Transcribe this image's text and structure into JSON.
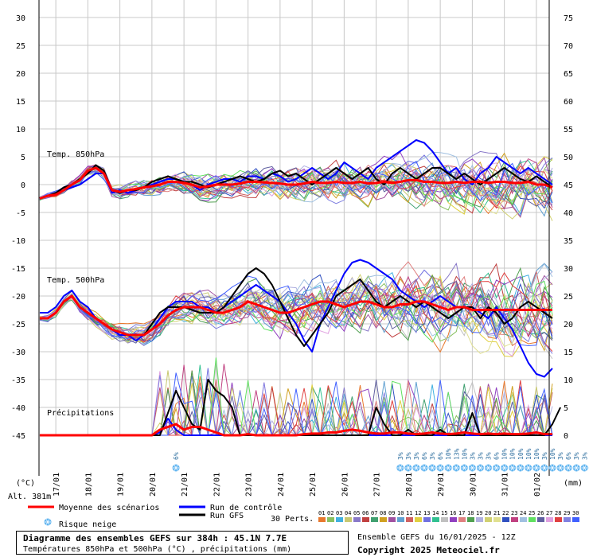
{
  "chart_data": {
    "type": "line",
    "title": "Diagramme des ensembles GEFS sur 384h : 45.1N 7.7E",
    "subtitle": "Températures 850hPa et 500hPa (°C) , précipitations (mm)",
    "run_info": "Ensemble GEFS du 16/01/2025 - 12Z",
    "copyright": "Copyright 2025 Meteociel.fr",
    "altitude": "Alt. 381m",
    "y_left_unit": "(°C)",
    "y_right_unit": "(mm)",
    "y_left_ticks": [
      "30",
      "25",
      "20",
      "15",
      "10",
      "5",
      "0",
      "-5",
      "-10",
      "-15",
      "-20",
      "-25",
      "-30",
      "-35",
      "-40",
      "-45"
    ],
    "y_right_ticks": [
      "75",
      "70",
      "65",
      "60",
      "55",
      "50",
      "45",
      "40",
      "35",
      "30",
      "25",
      "20",
      "15",
      "10",
      "5",
      "0"
    ],
    "ylim_left": [
      -45,
      30
    ],
    "ylim_right": [
      0,
      75
    ],
    "x_ticks": [
      "17/01",
      "18/01",
      "19/01",
      "20/01",
      "21/01",
      "22/01",
      "23/01",
      "24/01",
      "25/01",
      "26/01",
      "27/01",
      "28/01",
      "29/01",
      "30/01",
      "31/01",
      "01/02"
    ],
    "x_start": "16/01 12Z",
    "x_step_hours": 6,
    "grid": true,
    "section_labels": [
      "Temp. 850hPa",
      "Temp. 500hPa",
      "Précipitations"
    ],
    "snow_risk": {
      "icon": "snowflake-icon",
      "color": "#5fb4f0",
      "entries": [
        {
          "t": 17,
          "pct": "6%"
        },
        {
          "t": 45,
          "pct": "3%"
        },
        {
          "t": 46,
          "pct": "3%"
        },
        {
          "t": 47,
          "pct": "3%"
        },
        {
          "t": 48,
          "pct": "6%"
        },
        {
          "t": 49,
          "pct": "3%"
        },
        {
          "t": 50,
          "pct": "6%"
        },
        {
          "t": 51,
          "pct": "10%"
        },
        {
          "t": 52,
          "pct": "13%"
        },
        {
          "t": 53,
          "pct": "10%"
        },
        {
          "t": 54,
          "pct": "3%"
        },
        {
          "t": 55,
          "pct": "3%"
        },
        {
          "t": 56,
          "pct": "3%"
        },
        {
          "t": 57,
          "pct": "6%"
        },
        {
          "t": 58,
          "pct": "10%"
        },
        {
          "t": 59,
          "pct": "10%"
        },
        {
          "t": 60,
          "pct": "10%"
        },
        {
          "t": 61,
          "pct": "10%"
        },
        {
          "t": 62,
          "pct": "10%"
        },
        {
          "t": 63,
          "pct": "3%"
        },
        {
          "t": 64,
          "pct": "10%"
        },
        {
          "t": 65,
          "pct": "3%"
        },
        {
          "t": 66,
          "pct": "6%"
        },
        {
          "t": 67,
          "pct": "3%"
        },
        {
          "t": 68,
          "pct": "3%"
        },
        {
          "t": 69,
          "pct": "6%"
        },
        {
          "t": 70,
          "pct": "3%"
        },
        {
          "t": 71,
          "pct": "6%"
        },
        {
          "t": 74,
          "pct": "6%"
        },
        {
          "t": 78,
          "pct": "6%"
        },
        {
          "t": 79,
          "pct": "3%"
        },
        {
          "t": 80,
          "pct": "10%"
        }
      ]
    },
    "legend": {
      "mean": {
        "label": "Moyenne des scénarios",
        "color": "#ff0000"
      },
      "control": {
        "label": "Run de contrôle",
        "color": "#0000ff"
      },
      "gfs": {
        "label": "Run GFS",
        "color": "#000000"
      },
      "snow": {
        "label": "Risque neige"
      },
      "perts": {
        "label": "30 Perts.",
        "numbers": [
          "01",
          "02",
          "03",
          "04",
          "05",
          "06",
          "07",
          "08",
          "09",
          "10",
          "11",
          "12",
          "13",
          "14",
          "15",
          "16",
          "17",
          "18",
          "19",
          "20",
          "21",
          "22",
          "23",
          "24",
          "25",
          "26",
          "27",
          "28",
          "29",
          "30"
        ],
        "colors": [
          "#e8782d",
          "#88c060",
          "#40b0e0",
          "#c8c870",
          "#8878c8",
          "#c04040",
          "#40a070",
          "#d0a020",
          "#a050a0",
          "#60a0d0",
          "#d06060",
          "#e0d040",
          "#7070e0",
          "#30c090",
          "#c0c0c0",
          "#9040c0",
          "#e08080",
          "#50a050",
          "#b0b0e0",
          "#d0d070",
          "#e0e090",
          "#3050c0",
          "#c04080",
          "#a0c0e0",
          "#60e060",
          "#6060a0",
          "#e0a0e0",
          "#e04040",
          "#8080e0",
          "#4060ff"
        ]
      }
    },
    "series": [
      {
        "name": "Moyenne des scénarios",
        "group": "t850",
        "color": "#ff0000",
        "values": [
          -2.5,
          -2,
          -1.8,
          -1,
          0,
          0.8,
          2.5,
          3,
          2,
          -1,
          -1.3,
          -1,
          -0.8,
          -0.5,
          -0.3,
          0,
          0.5,
          0.5,
          0.3,
          0,
          -0.5,
          -0.3,
          0,
          0,
          0,
          0.2,
          0.5,
          0.5,
          0.4,
          0.3,
          0.2,
          0,
          0,
          0.2,
          0.5,
          0.3,
          0.3,
          0.5,
          0.3,
          0.3,
          0.5,
          0.2,
          0.3,
          0.5,
          0.3,
          0.5,
          0.8,
          0.8,
          0.5,
          0.5,
          0.3,
          0.3,
          0.5,
          0.3,
          0.5,
          0.5,
          0.3,
          0.5,
          0.5,
          0.3,
          0.3,
          0.5,
          0,
          0,
          -0.5
        ]
      },
      {
        "name": "Run de contrôle",
        "group": "t850",
        "color": "#0000ff",
        "values": [
          -2.5,
          -2,
          -1.5,
          -1,
          -0.5,
          0,
          1,
          2,
          2,
          -1.5,
          -1,
          -1.5,
          -1,
          -0.5,
          0,
          0.5,
          1,
          1,
          0.5,
          0,
          -1,
          0,
          0.5,
          1,
          1,
          0.5,
          1.5,
          1.5,
          1,
          2,
          1.5,
          0.5,
          1,
          2,
          3,
          2,
          1,
          2,
          4,
          3,
          2,
          1,
          3,
          4,
          5,
          6,
          7,
          8,
          7.5,
          6,
          4,
          2,
          3,
          1,
          0,
          2,
          3,
          5,
          4,
          3,
          2,
          3,
          2,
          1,
          0
        ]
      },
      {
        "name": "Run GFS",
        "group": "t850",
        "color": "#000000",
        "values": [
          -2.5,
          -2,
          -1.5,
          -0.5,
          0,
          1,
          2,
          3.5,
          2.5,
          -1,
          -1.5,
          -1,
          -1,
          -0.5,
          0.5,
          1,
          1.5,
          1,
          0.5,
          0.5,
          0,
          -0.5,
          0,
          0.5,
          1,
          1.5,
          1,
          0.5,
          1,
          2,
          2.5,
          1.5,
          2,
          1,
          0,
          1,
          2,
          3,
          2,
          1,
          2,
          3,
          1,
          0,
          2,
          3,
          2,
          1,
          2,
          3,
          3,
          2,
          1,
          2,
          1,
          0,
          1,
          2,
          3,
          2,
          1,
          0.5,
          1.5,
          0.5,
          -0.5
        ]
      },
      {
        "name": "Moyenne des scénarios",
        "group": "t500",
        "color": "#ff0000",
        "values": [
          -24,
          -24,
          -23,
          -21,
          -20,
          -22,
          -23,
          -24,
          -25,
          -26,
          -26.5,
          -27,
          -27,
          -27,
          -26,
          -25,
          -23.5,
          -22.5,
          -22,
          -22,
          -22,
          -22.5,
          -23,
          -23,
          -22.5,
          -22,
          -21,
          -21.5,
          -22,
          -22.5,
          -23,
          -23,
          -22.5,
          -22,
          -21.5,
          -21,
          -21,
          -21.5,
          -22,
          -21.5,
          -21,
          -21,
          -21.5,
          -22,
          -22,
          -21.5,
          -21.5,
          -21,
          -21,
          -21.5,
          -22,
          -22.5,
          -22,
          -22,
          -22.5,
          -22.5,
          -22.5,
          -22.5,
          -22.5,
          -22.5,
          -22.5,
          -22.5,
          -22.5,
          -22.5,
          -22.5
        ]
      },
      {
        "name": "Run de contrôle",
        "group": "t500",
        "color": "#0000ff",
        "values": [
          -23,
          -23,
          -22,
          -20,
          -19,
          -21,
          -22,
          -24,
          -25,
          -26,
          -27,
          -27,
          -28,
          -27,
          -26,
          -24,
          -22,
          -21,
          -21,
          -21,
          -22,
          -22,
          -23,
          -22,
          -21,
          -20,
          -19,
          -18,
          -19,
          -20,
          -21,
          -23,
          -25,
          -28,
          -30,
          -25,
          -22,
          -19,
          -16,
          -14,
          -13.5,
          -14,
          -15,
          -16,
          -17,
          -19,
          -20,
          -21,
          -22,
          -21,
          -20,
          -21,
          -22,
          -22,
          -22,
          -23,
          -24,
          -22,
          -24,
          -26,
          -29,
          -32,
          -34,
          -34.5,
          -33
        ]
      },
      {
        "name": "Run GFS",
        "group": "t500",
        "color": "#000000",
        "values": [
          -24,
          -24,
          -23,
          -21,
          -20,
          -22,
          -23,
          -24,
          -25,
          -26,
          -26.5,
          -27,
          -27,
          -27,
          -25,
          -23,
          -22,
          -22,
          -22,
          -22.5,
          -23,
          -23,
          -23,
          -22,
          -20,
          -18,
          -16,
          -15,
          -16,
          -18,
          -21,
          -24,
          -27,
          -29,
          -27,
          -25,
          -23,
          -20,
          -19,
          -18,
          -17,
          -19,
          -21,
          -22,
          -21,
          -20,
          -21,
          -22,
          -21,
          -22,
          -23,
          -24,
          -23,
          -22,
          -22,
          -24,
          -22,
          -23,
          -25,
          -24,
          -22,
          -21,
          -22,
          -23,
          -24
        ]
      },
      {
        "name": "Moyenne des scénarios",
        "group": "precip",
        "color": "#ff0000",
        "values": [
          0,
          0,
          0,
          0,
          0,
          0,
          0,
          0,
          0,
          0,
          0,
          0,
          0,
          0,
          0,
          1,
          1.5,
          2,
          1,
          1.5,
          1.5,
          1,
          0.5,
          0,
          0,
          0,
          0.2,
          0,
          0,
          0,
          0,
          0,
          0,
          0.2,
          0.3,
          0.3,
          0.5,
          0.5,
          0.8,
          1,
          0.8,
          0.5,
          0.3,
          0.3,
          0.5,
          0.5,
          0.3,
          0.2,
          0.3,
          0.5,
          0.3,
          0.2,
          0.3,
          0.5,
          0.3,
          0.2,
          0.3,
          0.2,
          0.3,
          0.2,
          0.2,
          0.3,
          0.5,
          0.2,
          0.2
        ]
      },
      {
        "name": "Run de contrôle",
        "group": "precip",
        "color": "#0000ff",
        "values": [
          0,
          0,
          0,
          0,
          0,
          0,
          0,
          0,
          0,
          0,
          0,
          0,
          0,
          0,
          0,
          0.5,
          3,
          1,
          0,
          0,
          0,
          0,
          0,
          0,
          0,
          0,
          0,
          0,
          0,
          0,
          0,
          0,
          0,
          0,
          0,
          0,
          0,
          0,
          0,
          0,
          0,
          0,
          0,
          0,
          0,
          0,
          0,
          0,
          0,
          0,
          0,
          0,
          0,
          0,
          0,
          0,
          0,
          0,
          0,
          0,
          0,
          0,
          0,
          0,
          0
        ]
      },
      {
        "name": "Run GFS",
        "group": "precip",
        "color": "#000000",
        "values": [
          0,
          0,
          0,
          0,
          0,
          0,
          0,
          0,
          0,
          0,
          0,
          0,
          0,
          0,
          0,
          0,
          4,
          8,
          5,
          2,
          1,
          10,
          8,
          7,
          5,
          0,
          0,
          0,
          0,
          0,
          0,
          0,
          0,
          0,
          0,
          0,
          0,
          0,
          0,
          0,
          0,
          0,
          5,
          2,
          0,
          0,
          1,
          0,
          0,
          0,
          1,
          0,
          0,
          0,
          4,
          0,
          0,
          0,
          0,
          0,
          0,
          0,
          0,
          0,
          2,
          5
        ]
      }
    ]
  }
}
